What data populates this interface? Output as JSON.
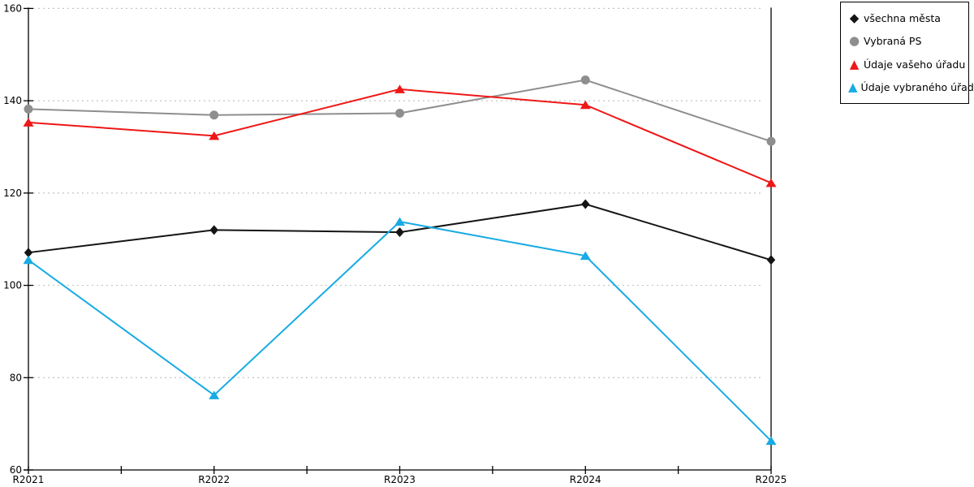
{
  "chart_data": {
    "type": "line",
    "title": "",
    "xlabel": "",
    "ylabel": "",
    "categories": [
      "R2021",
      "R2022",
      "R2023",
      "R2024",
      "R2025"
    ],
    "series": [
      {
        "name": "všechna města",
        "marker": "diamond",
        "color": "#141414",
        "values": [
          107.1,
          112.0,
          111.5,
          117.6,
          105.5
        ]
      },
      {
        "name": "Vybraná PS",
        "marker": "circle",
        "color": "#8e8e8e",
        "values": [
          138.2,
          136.9,
          137.3,
          144.5,
          131.2
        ]
      },
      {
        "name": "Údaje vašeho úřadu",
        "marker": "triangle",
        "color": "#ee1717",
        "values": [
          135.3,
          132.4,
          142.5,
          139.1,
          122.2
        ]
      },
      {
        "name": "Údaje vybraného úřadu",
        "marker": "triangle",
        "color": "#18abe4",
        "values": [
          105.5,
          76.2,
          113.8,
          106.4,
          66.3
        ]
      }
    ],
    "ylim": [
      60,
      160
    ],
    "yticks": [
      60,
      80,
      100,
      120,
      140,
      160
    ],
    "grid": "dotted-horizontal",
    "grid_color": "#c4c4c4",
    "axis_color": "#000000",
    "text_color": "#000000",
    "legend_position": "top-right-outside",
    "legend_border_color": "#000000"
  }
}
